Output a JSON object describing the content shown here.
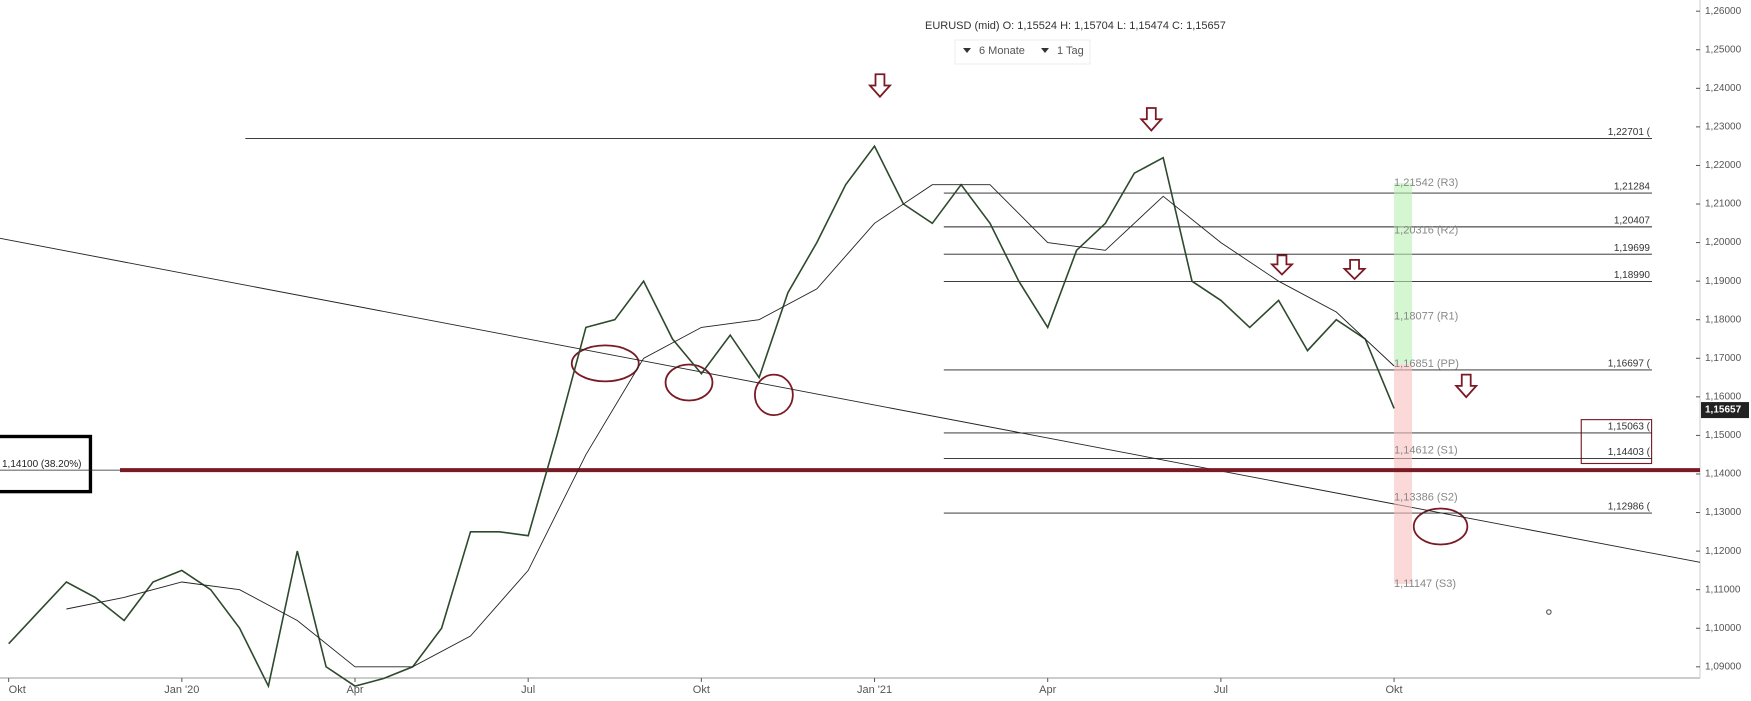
{
  "toolbar": {
    "range": "6 Monate",
    "interval": "1 Tag"
  },
  "chart_data": {
    "type": "line",
    "header": "EURUSD (mid)  O: 1,15524  H: 1,15704  L: 1,15474  C: 1,15657",
    "xlim": [
      -0.15,
      29.3
    ],
    "ylim": [
      1.0871,
      1.2629
    ],
    "xticks": [
      {
        "value": 0,
        "label": "Okt"
      },
      {
        "value": 3,
        "label": "Jan '20"
      },
      {
        "value": 6,
        "label": "Apr"
      },
      {
        "value": 9,
        "label": "Jul"
      },
      {
        "value": 12,
        "label": "Okt"
      },
      {
        "value": 15,
        "label": "Jan '21"
      },
      {
        "value": 18,
        "label": "Apr"
      },
      {
        "value": 21,
        "label": "Jul"
      },
      {
        "value": 24,
        "label": "Okt"
      }
    ],
    "yticks": [
      {
        "value": 1.09,
        "label": "1,09000"
      },
      {
        "value": 1.1,
        "label": "1,10000"
      },
      {
        "value": 1.11,
        "label": "1,11000"
      },
      {
        "value": 1.12,
        "label": "1,12000"
      },
      {
        "value": 1.13,
        "label": "1,13000"
      },
      {
        "value": 1.14,
        "label": "1,14000"
      },
      {
        "value": 1.15,
        "label": "1,15000"
      },
      {
        "value": 1.16,
        "label": "1,16000"
      },
      {
        "value": 1.17,
        "label": "1,17000"
      },
      {
        "value": 1.18,
        "label": "1,18000"
      },
      {
        "value": 1.19,
        "label": "1,19000"
      },
      {
        "value": 1.2,
        "label": "1,20000"
      },
      {
        "value": 1.21,
        "label": "1,21000"
      },
      {
        "value": 1.22,
        "label": "1,22000"
      },
      {
        "value": 1.23,
        "label": "1,23000"
      },
      {
        "value": 1.24,
        "label": "1,24000"
      },
      {
        "value": 1.25,
        "label": "1,25000"
      },
      {
        "value": 1.26,
        "label": "1,26000"
      }
    ],
    "series": [
      {
        "color": "#2e4a2e",
        "x": [
          0,
          0.5,
          1,
          1.5,
          2,
          2.5,
          3,
          3.5,
          4,
          4.5,
          5,
          5.5,
          6,
          6.5,
          7,
          7.5,
          8,
          8.5,
          9,
          9.5,
          10,
          10.5,
          11,
          11.5,
          12,
          12.5,
          13,
          13.5,
          14,
          14.5,
          15,
          15.5,
          16,
          16.5,
          17,
          17.5,
          18,
          18.5,
          19,
          19.5,
          20,
          20.5,
          21,
          21.5,
          22,
          22.5,
          23,
          23.5,
          24
        ],
        "values": [
          1.096,
          1.104,
          1.112,
          1.108,
          1.102,
          1.112,
          1.115,
          1.11,
          1.1,
          1.085,
          1.12,
          1.09,
          1.085,
          1.087,
          1.09,
          1.1,
          1.125,
          1.125,
          1.124,
          1.15,
          1.178,
          1.18,
          1.19,
          1.175,
          1.166,
          1.176,
          1.165,
          1.187,
          1.2,
          1.215,
          1.225,
          1.21,
          1.205,
          1.215,
          1.205,
          1.19,
          1.178,
          1.198,
          1.205,
          1.218,
          1.222,
          1.19,
          1.185,
          1.178,
          1.185,
          1.172,
          1.18,
          1.175,
          1.157
        ]
      },
      {
        "color": "#222222",
        "x": [
          1,
          2,
          3,
          4,
          5,
          6,
          7,
          8,
          9,
          10,
          11,
          12,
          13,
          14,
          15,
          16,
          17,
          18,
          19,
          20,
          21,
          22,
          23,
          24
        ],
        "values": [
          1.105,
          1.108,
          1.112,
          1.11,
          1.102,
          1.09,
          1.09,
          1.098,
          1.115,
          1.145,
          1.17,
          1.178,
          1.18,
          1.188,
          1.205,
          1.215,
          1.215,
          1.2,
          1.198,
          1.212,
          1.2,
          1.19,
          1.182,
          1.168
        ]
      }
    ],
    "levels": [
      {
        "value": 1.22701,
        "label": "1,22701 (",
        "start": 4.1
      },
      {
        "value": 1.21284,
        "label": "1,21284",
        "start": 16.2
      },
      {
        "value": 1.20407,
        "label": "1,20407",
        "start": 16.2
      },
      {
        "value": 1.19699,
        "label": "1,19699",
        "start": 16.2
      },
      {
        "value": 1.1899,
        "label": "1,18990",
        "start": 16.2
      },
      {
        "value": 1.16697,
        "label": "1,16697 (",
        "start": 16.2
      },
      {
        "value": 1.15063,
        "label": "1,15063 (",
        "start": 16.2
      },
      {
        "value": 1.14403,
        "label": "1,14403 (",
        "start": 16.2
      },
      {
        "value": 1.12986,
        "label": "1,12986 (",
        "start": 16.2
      }
    ],
    "pivots": [
      {
        "value": 1.21542,
        "label": "1,21542 (R3)"
      },
      {
        "value": 1.20316,
        "label": "1,20316 (R2)"
      },
      {
        "value": 1.18077,
        "label": "1,18077 (R1)"
      },
      {
        "value": 1.16851,
        "label": "1,16851 (PP)"
      },
      {
        "value": 1.14612,
        "label": "1,14612 (S1)"
      },
      {
        "value": 1.13386,
        "label": "1,13386 (S2)"
      },
      {
        "value": 1.11147,
        "label": "1,11147 (S3)"
      }
    ],
    "fib": {
      "value": 1.141,
      "label": "1,14100 (38.20%)",
      "color": "#7a1a24"
    },
    "trendline": {
      "x": [
        -0.15,
        29.3
      ],
      "y": [
        1.2011,
        1.1171
      ]
    },
    "last_price": {
      "value": 1.15657,
      "label": "1,15657"
    }
  }
}
